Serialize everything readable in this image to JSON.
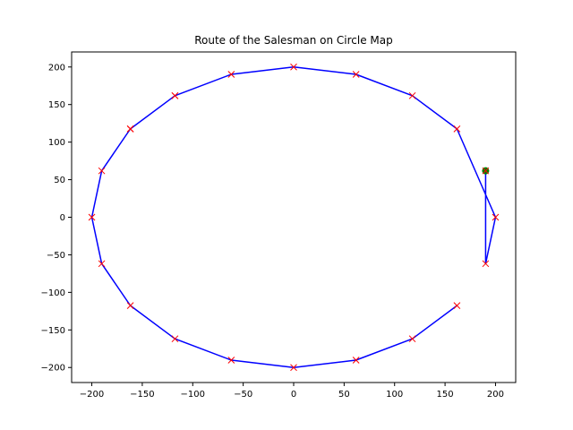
{
  "chart_data": {
    "type": "line",
    "title": "Route of the Salesman on Circle Map",
    "xlabel": "",
    "ylabel": "",
    "xlim": [
      -220,
      220
    ],
    "ylim": [
      -220,
      220
    ],
    "xticks": [
      -200,
      -150,
      -100,
      -50,
      0,
      50,
      100,
      150,
      200
    ],
    "yticks": [
      -200,
      -150,
      -100,
      -50,
      0,
      50,
      100,
      150,
      200
    ],
    "xtick_labels": [
      "−200",
      "−150",
      "−100",
      "−50",
      "0",
      "50",
      "100",
      "150",
      "200"
    ],
    "ytick_labels": [
      "−200",
      "−150",
      "−100",
      "−50",
      "0",
      "50",
      "100",
      "150",
      "200"
    ],
    "grid": false,
    "series": [
      {
        "role": "route",
        "color": "#0000ff",
        "marker": "x",
        "marker_color": "#ff0000",
        "points": [
          [
            190.2,
            61.8
          ],
          [
            190.2,
            -61.8
          ],
          [
            200,
            0
          ],
          [
            161.8,
            117.6
          ],
          [
            117.6,
            161.8
          ],
          [
            61.8,
            190.2
          ],
          [
            0,
            200
          ],
          [
            -61.8,
            190.2
          ],
          [
            -117.6,
            161.8
          ],
          [
            -161.8,
            117.6
          ],
          [
            -117.6,
            161.8
          ],
          [
            -161.8,
            117.6
          ],
          [
            -190.2,
            61.8
          ],
          [
            -200,
            0
          ],
          [
            -190.2,
            -61.8
          ],
          [
            -161.8,
            -117.6
          ],
          [
            -117.6,
            -161.8
          ],
          [
            -61.8,
            -190.2
          ],
          [
            0,
            -200
          ],
          [
            61.8,
            -190.2
          ],
          [
            117.6,
            -161.8
          ],
          [
            161.8,
            -117.6
          ]
        ]
      }
    ],
    "start_point": {
      "x": 190.2,
      "y": 61.8,
      "color": "#008000",
      "marker": "o"
    }
  }
}
